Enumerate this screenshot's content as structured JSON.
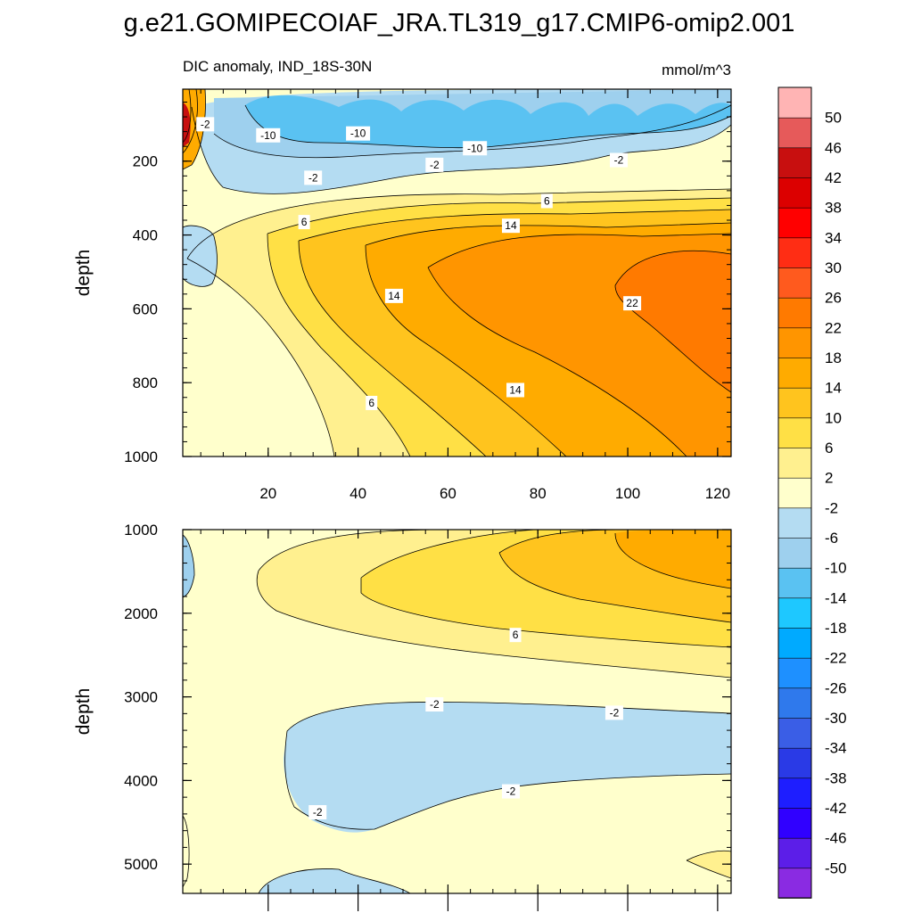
{
  "title": "g.e21.GOMIPECOIAF_JRA.TL319_g17.CMIP6-omip2.001",
  "subtitle_left": "DIC anomaly, IND_18S-30N",
  "subtitle_right": "mmol/m^3",
  "colors": {
    "bins": [
      "#8a2be2",
      "#5c1ee8",
      "#3000ff",
      "#1e1eff",
      "#2a3ae6",
      "#3a5ee6",
      "#2f79ec",
      "#1e90ff",
      "#00aaff",
      "#1ec8ff",
      "#5ac2f2",
      "#9ed0ee",
      "#b4dcf2",
      "#ffffcc",
      "#fff08f",
      "#ffe045",
      "#ffc41e",
      "#ffab00",
      "#ff9500",
      "#ff7a00",
      "#ff5a1e",
      "#ff2d14",
      "#ff0000",
      "#dc0000",
      "#c80f0f",
      "#e65a5a",
      "#ffb4b4"
    ],
    "contour_line": "#000000"
  },
  "chart_data": [
    {
      "type": "contour",
      "panel": "upper",
      "xlabel": "",
      "ylabel": "depth",
      "xlim": [
        1,
        123
      ],
      "ylim": [
        1000,
        5
      ],
      "x_ticks": [
        20,
        40,
        60,
        80,
        100,
        120
      ],
      "y_ticks": [
        200,
        400,
        600,
        800,
        1000
      ],
      "contour_labels": [
        {
          "text": "-2",
          "x": 6,
          "y": 100
        },
        {
          "text": "-10",
          "x": 20,
          "y": 130
        },
        {
          "text": "-10",
          "x": 40,
          "y": 125
        },
        {
          "text": "-10",
          "x": 66,
          "y": 165
        },
        {
          "text": "-2",
          "x": 57,
          "y": 210
        },
        {
          "text": "-2",
          "x": 98,
          "y": 197
        },
        {
          "text": "-2",
          "x": 30,
          "y": 245
        },
        {
          "text": "6",
          "x": 28,
          "y": 365
        },
        {
          "text": "6",
          "x": 82,
          "y": 308
        },
        {
          "text": "14",
          "x": 74,
          "y": 375
        },
        {
          "text": "14",
          "x": 48,
          "y": 565
        },
        {
          "text": "22",
          "x": 101,
          "y": 585
        },
        {
          "text": "14",
          "x": 75,
          "y": 820
        },
        {
          "text": "6",
          "x": 43,
          "y": 855
        }
      ]
    },
    {
      "type": "contour",
      "panel": "lower",
      "xlabel": "",
      "ylabel": "depth",
      "xlim": [
        1,
        123
      ],
      "ylim": [
        5350,
        1000
      ],
      "x_ticks": [
        20,
        40,
        60,
        80,
        100,
        120
      ],
      "y_ticks": [
        1000,
        2000,
        3000,
        4000,
        5000
      ],
      "contour_labels": [
        {
          "text": "6",
          "x": 75,
          "y": 2260
        },
        {
          "text": "-2",
          "x": 57,
          "y": 3090
        },
        {
          "text": "-2",
          "x": 97,
          "y": 3190
        },
        {
          "text": "-2",
          "x": 74,
          "y": 4130
        },
        {
          "text": "-2",
          "x": 31,
          "y": 4380
        }
      ]
    }
  ],
  "colorbar": {
    "labels": [
      "50",
      "46",
      "42",
      "38",
      "34",
      "30",
      "26",
      "22",
      "18",
      "14",
      "10",
      "6",
      "2",
      "-2",
      "-6",
      "-10",
      "-14",
      "-18",
      "-22",
      "-26",
      "-30",
      "-34",
      "-38",
      "-42",
      "-46",
      "-50"
    ]
  }
}
